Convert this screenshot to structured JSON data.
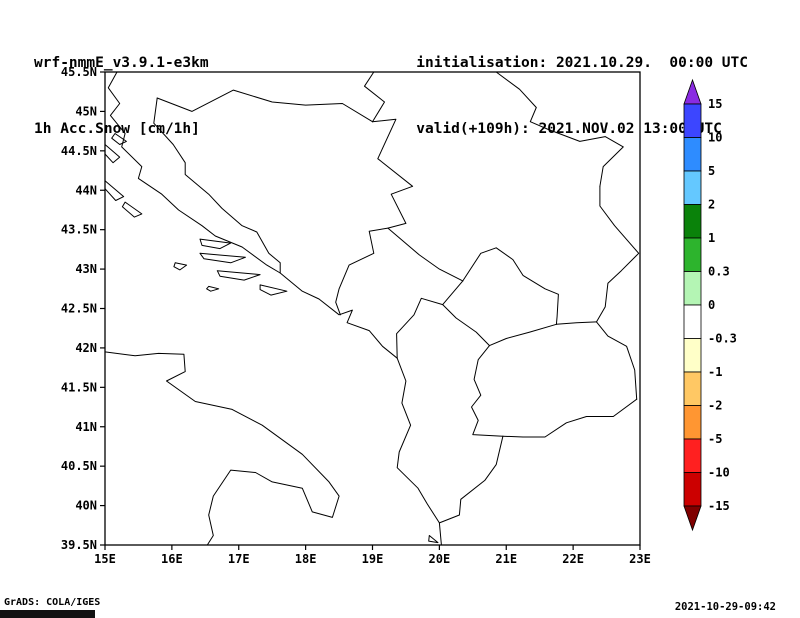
{
  "header": {
    "model": "wrf-nmmE_v3.9.1-e3km",
    "field": "1h Acc.Snow [cm/1h]",
    "init_label": "initialisation: 2021.10.29.  00:00 UTC",
    "valid_label": "valid(+109h): 2021.NOV.02 13:00 UTC"
  },
  "footer": {
    "grads_credit": "GrADS: COLA/IGES",
    "timestamp": "2021-10-29-09:42"
  },
  "chart_data": {
    "type": "map",
    "title": "wrf-nmmE_v3.9.1-e3km 1h Acc.Snow [cm/1h]",
    "projection": "latlon",
    "lon_range": [
      15,
      23
    ],
    "lat_range": [
      39.5,
      45.5
    ],
    "x_tick_labels": [
      "15E",
      "16E",
      "17E",
      "18E",
      "19E",
      "20E",
      "21E",
      "22E",
      "23E"
    ],
    "tick_lons": [
      15,
      16,
      17,
      18,
      19,
      20,
      21,
      22,
      23
    ],
    "y_tick_labels": [
      "45.5N",
      "45N",
      "44.5N",
      "44N",
      "43.5N",
      "43N",
      "42.5N",
      "42N",
      "41.5N",
      "41N",
      "40.5N",
      "40N",
      "39.5N"
    ],
    "tick_lats": [
      45.5,
      45,
      44.5,
      44,
      43.5,
      43,
      42.5,
      42,
      41.5,
      41,
      40.5,
      40,
      39.5
    ],
    "grid": "off",
    "field_summary": "No shaded contours visible: 1h accumulated snow is 0 cm/1h over the whole domain (map background white)",
    "colorbar": {
      "position": "right",
      "levels": [
        "15",
        "10",
        "5",
        "2",
        "1",
        "0.3",
        "0",
        "-0.3",
        "-1",
        "-2",
        "-5",
        "-10",
        "-15"
      ],
      "arrow_top_color": "#8a2be2",
      "box_colors": [
        "#3c46ff",
        "#2e8cff",
        "#64c8ff",
        "#0a820a",
        "#2db42d",
        "#b4f5b4",
        "#ffffff",
        "#ffffc8",
        "#ffc864",
        "#ff9632",
        "#ff2020",
        "#cc0000"
      ],
      "arrow_bottom_color": "#7f0000",
      "outline_color": "#000000"
    },
    "outline_color": "#000000",
    "outlines": [
      {
        "name": "coast-dalmatia-albania",
        "points": [
          [
            15.18,
            45.5
          ],
          [
            15.05,
            45.3
          ],
          [
            15.22,
            45.1
          ],
          [
            15.08,
            44.95
          ],
          [
            15.3,
            44.72
          ],
          [
            15.25,
            44.55
          ],
          [
            15.55,
            44.3
          ],
          [
            15.5,
            44.15
          ],
          [
            15.85,
            43.95
          ],
          [
            16.1,
            43.75
          ],
          [
            16.45,
            43.55
          ],
          [
            16.65,
            43.42
          ],
          [
            17.05,
            43.28
          ],
          [
            17.42,
            43.05
          ],
          [
            17.62,
            42.95
          ],
          [
            17.95,
            42.72
          ],
          [
            18.2,
            42.62
          ],
          [
            18.5,
            42.42
          ],
          [
            18.7,
            42.48
          ],
          [
            18.62,
            42.32
          ],
          [
            18.95,
            42.22
          ],
          [
            19.15,
            42.02
          ],
          [
            19.37,
            41.87
          ],
          [
            19.5,
            41.58
          ],
          [
            19.44,
            41.3
          ],
          [
            19.57,
            41.02
          ],
          [
            19.4,
            40.68
          ],
          [
            19.37,
            40.48
          ],
          [
            19.68,
            40.22
          ],
          [
            19.82,
            40.02
          ],
          [
            20.0,
            39.78
          ],
          [
            20.03,
            39.5
          ]
        ]
      },
      {
        "name": "coast-italy",
        "points": [
          [
            15.0,
            41.95
          ],
          [
            15.45,
            41.9
          ],
          [
            15.8,
            41.93
          ],
          [
            16.18,
            41.92
          ],
          [
            16.2,
            41.7
          ],
          [
            15.92,
            41.58
          ],
          [
            16.35,
            41.32
          ],
          [
            16.9,
            41.22
          ],
          [
            17.35,
            41.02
          ],
          [
            17.95,
            40.65
          ],
          [
            18.35,
            40.3
          ],
          [
            18.5,
            40.12
          ],
          [
            18.4,
            39.85
          ],
          [
            18.1,
            39.92
          ],
          [
            17.95,
            40.22
          ],
          [
            17.5,
            40.3
          ],
          [
            17.25,
            40.42
          ],
          [
            16.88,
            40.45
          ],
          [
            16.62,
            40.12
          ],
          [
            16.55,
            39.88
          ],
          [
            16.62,
            39.62
          ],
          [
            16.53,
            39.5
          ]
        ]
      },
      {
        "name": "border-croatia-bih-north",
        "points": [
          [
            15.78,
            45.17
          ],
          [
            16.3,
            45.0
          ],
          [
            16.92,
            45.27
          ],
          [
            17.5,
            45.12
          ],
          [
            18.0,
            45.08
          ],
          [
            18.55,
            45.1
          ],
          [
            19.0,
            44.87
          ]
        ]
      },
      {
        "name": "border-croatia-bih-west",
        "points": [
          [
            15.78,
            45.17
          ],
          [
            15.73,
            44.85
          ],
          [
            16.02,
            44.58
          ],
          [
            16.2,
            44.35
          ],
          [
            16.2,
            44.2
          ],
          [
            16.55,
            43.95
          ],
          [
            16.75,
            43.77
          ],
          [
            17.05,
            43.55
          ],
          [
            17.27,
            43.47
          ],
          [
            17.45,
            43.2
          ],
          [
            17.62,
            43.08
          ],
          [
            17.62,
            42.95
          ]
        ]
      },
      {
        "name": "border-bih-serbia-montenegro",
        "points": [
          [
            19.0,
            44.87
          ],
          [
            19.35,
            44.9
          ],
          [
            19.08,
            44.4
          ],
          [
            19.6,
            44.05
          ],
          [
            19.28,
            43.95
          ],
          [
            19.5,
            43.58
          ],
          [
            19.23,
            43.52
          ],
          [
            18.95,
            43.48
          ],
          [
            19.02,
            43.2
          ],
          [
            18.65,
            43.05
          ],
          [
            18.5,
            42.75
          ],
          [
            18.45,
            42.58
          ],
          [
            18.52,
            42.42
          ]
        ]
      },
      {
        "name": "border-croatia-serbia-danube",
        "points": [
          [
            19.02,
            45.5
          ],
          [
            18.88,
            45.32
          ],
          [
            19.18,
            45.12
          ],
          [
            19.0,
            44.87
          ]
        ]
      },
      {
        "name": "border-montenegro-serbia",
        "points": [
          [
            19.23,
            43.52
          ],
          [
            19.7,
            43.18
          ],
          [
            20.0,
            43.0
          ],
          [
            20.35,
            42.85
          ]
        ]
      },
      {
        "name": "border-montenegro-albania-kosovo",
        "points": [
          [
            19.37,
            41.87
          ],
          [
            19.36,
            42.18
          ],
          [
            19.62,
            42.42
          ],
          [
            19.73,
            42.63
          ],
          [
            20.05,
            42.55
          ],
          [
            20.35,
            42.85
          ]
        ]
      },
      {
        "name": "border-kosovo-serbia",
        "points": [
          [
            20.35,
            42.85
          ],
          [
            20.62,
            43.2
          ],
          [
            20.85,
            43.27
          ],
          [
            21.1,
            43.12
          ],
          [
            21.25,
            42.92
          ],
          [
            21.58,
            42.75
          ],
          [
            21.78,
            42.68
          ],
          [
            21.76,
            42.4
          ],
          [
            21.75,
            42.3
          ]
        ]
      },
      {
        "name": "border-kosovo-macedonia",
        "points": [
          [
            21.75,
            42.3
          ],
          [
            21.35,
            42.2
          ],
          [
            21.0,
            42.12
          ],
          [
            20.75,
            42.03
          ]
        ]
      },
      {
        "name": "border-kosovo-albania",
        "points": [
          [
            20.75,
            42.03
          ],
          [
            20.55,
            42.2
          ],
          [
            20.25,
            42.38
          ],
          [
            20.05,
            42.55
          ]
        ]
      },
      {
        "name": "border-macedonia-albania",
        "points": [
          [
            20.75,
            42.03
          ],
          [
            20.58,
            41.85
          ],
          [
            20.52,
            41.6
          ],
          [
            20.62,
            41.4
          ],
          [
            20.48,
            41.25
          ],
          [
            20.58,
            41.08
          ],
          [
            20.5,
            40.9
          ],
          [
            20.95,
            40.88
          ]
        ]
      },
      {
        "name": "border-serbia-macedonia",
        "points": [
          [
            21.75,
            42.3
          ],
          [
            22.05,
            42.32
          ],
          [
            22.35,
            42.33
          ]
        ]
      },
      {
        "name": "border-macedonia-bulgaria",
        "points": [
          [
            22.35,
            42.33
          ],
          [
            22.52,
            42.15
          ],
          [
            22.8,
            42.02
          ],
          [
            22.92,
            41.72
          ],
          [
            22.95,
            41.35
          ]
        ]
      },
      {
        "name": "border-macedonia-greece",
        "points": [
          [
            22.95,
            41.35
          ],
          [
            22.6,
            41.13
          ],
          [
            22.2,
            41.13
          ],
          [
            21.9,
            41.05
          ],
          [
            21.58,
            40.87
          ],
          [
            21.25,
            40.87
          ],
          [
            20.95,
            40.88
          ]
        ]
      },
      {
        "name": "border-serbia-bulgaria",
        "points": [
          [
            22.35,
            42.33
          ],
          [
            22.48,
            42.52
          ],
          [
            22.52,
            42.82
          ],
          [
            22.72,
            42.98
          ],
          [
            22.98,
            43.2
          ],
          [
            22.62,
            43.55
          ],
          [
            22.4,
            43.8
          ],
          [
            22.4,
            44.05
          ]
        ]
      },
      {
        "name": "border-serbia-romania",
        "points": [
          [
            22.4,
            44.05
          ],
          [
            22.45,
            44.3
          ],
          [
            22.75,
            44.55
          ],
          [
            22.48,
            44.68
          ],
          [
            22.1,
            44.62
          ],
          [
            21.63,
            44.77
          ],
          [
            21.36,
            44.87
          ],
          [
            21.45,
            45.05
          ],
          [
            21.2,
            45.28
          ],
          [
            20.85,
            45.5
          ]
        ]
      },
      {
        "name": "border-albania-greece",
        "points": [
          [
            20.0,
            39.78
          ],
          [
            20.3,
            39.88
          ],
          [
            20.32,
            40.08
          ],
          [
            20.68,
            40.32
          ],
          [
            20.85,
            40.52
          ],
          [
            20.95,
            40.88
          ]
        ]
      },
      {
        "name": "island-pag",
        "points": [
          [
            15.0,
            44.58
          ],
          [
            15.22,
            44.42
          ],
          [
            15.12,
            44.35
          ],
          [
            15.0,
            44.46
          ]
        ]
      },
      {
        "name": "island-rab",
        "points": [
          [
            15.15,
            44.72
          ],
          [
            15.32,
            44.62
          ],
          [
            15.22,
            44.58
          ],
          [
            15.1,
            44.66
          ],
          [
            15.15,
            44.72
          ]
        ]
      },
      {
        "name": "island-dugi-otok",
        "points": [
          [
            15.0,
            44.12
          ],
          [
            15.28,
            43.92
          ],
          [
            15.16,
            43.87
          ],
          [
            15.0,
            44.02
          ]
        ]
      },
      {
        "name": "island-kornati",
        "points": [
          [
            15.3,
            43.85
          ],
          [
            15.55,
            43.7
          ],
          [
            15.44,
            43.66
          ],
          [
            15.26,
            43.79
          ],
          [
            15.3,
            43.85
          ]
        ]
      },
      {
        "name": "island-brac",
        "points": [
          [
            16.42,
            43.38
          ],
          [
            16.88,
            43.33
          ],
          [
            16.72,
            43.26
          ],
          [
            16.45,
            43.3
          ],
          [
            16.42,
            43.38
          ]
        ]
      },
      {
        "name": "island-hvar",
        "points": [
          [
            16.42,
            43.2
          ],
          [
            17.1,
            43.15
          ],
          [
            16.88,
            43.08
          ],
          [
            16.48,
            43.13
          ],
          [
            16.42,
            43.2
          ]
        ]
      },
      {
        "name": "island-korcula",
        "points": [
          [
            16.68,
            42.98
          ],
          [
            17.32,
            42.93
          ],
          [
            17.08,
            42.86
          ],
          [
            16.72,
            42.91
          ],
          [
            16.68,
            42.98
          ]
        ]
      },
      {
        "name": "island-mljet",
        "points": [
          [
            17.32,
            42.8
          ],
          [
            17.72,
            42.72
          ],
          [
            17.48,
            42.67
          ],
          [
            17.32,
            42.74
          ],
          [
            17.32,
            42.8
          ]
        ]
      },
      {
        "name": "island-vis",
        "points": [
          [
            16.05,
            43.08
          ],
          [
            16.22,
            43.05
          ],
          [
            16.12,
            42.99
          ],
          [
            16.03,
            43.03
          ],
          [
            16.05,
            43.08
          ]
        ]
      },
      {
        "name": "island-lastovo",
        "points": [
          [
            16.55,
            42.78
          ],
          [
            16.7,
            42.75
          ],
          [
            16.58,
            42.72
          ],
          [
            16.52,
            42.75
          ],
          [
            16.55,
            42.78
          ]
        ]
      },
      {
        "name": "island-corfu",
        "points": [
          [
            19.85,
            39.62
          ],
          [
            19.98,
            39.53
          ],
          [
            19.84,
            39.55
          ],
          [
            19.85,
            39.62
          ]
        ]
      }
    ]
  }
}
